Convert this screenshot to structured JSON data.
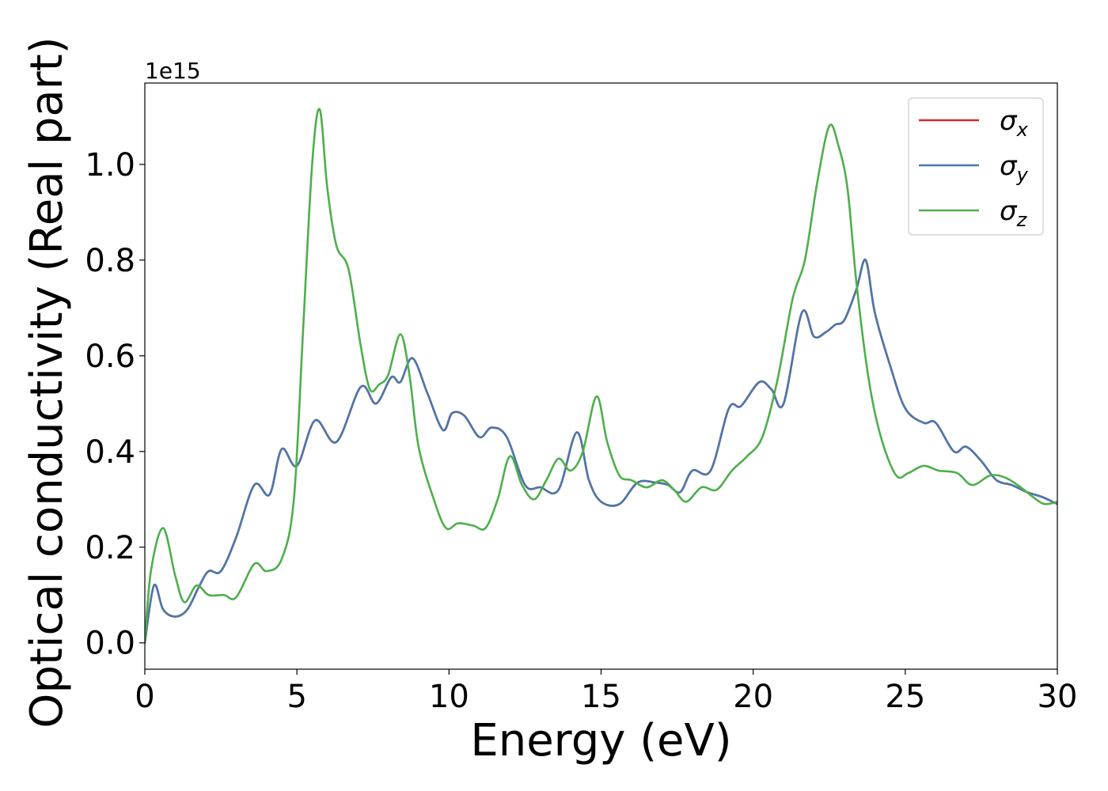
{
  "chart_data": {
    "type": "line",
    "title": "",
    "xlabel": "Energy (eV)",
    "ylabel": "Optical conductivity (Real part)",
    "y_offset_text": "1e15",
    "y_scale": 1000000000000000.0,
    "xlim": [
      0,
      30
    ],
    "ylim": [
      -0.055,
      1.17
    ],
    "xticks": [
      0,
      5,
      10,
      15,
      20,
      25,
      30
    ],
    "xtick_labels": [
      "0",
      "5",
      "10",
      "15",
      "20",
      "25",
      "30"
    ],
    "yticks": [
      0.0,
      0.2,
      0.4,
      0.6,
      0.8,
      1.0
    ],
    "ytick_labels": [
      "0.0",
      "0.2",
      "0.4",
      "0.6",
      "0.8",
      "1.0"
    ],
    "grid": false,
    "legend_position": "top-right",
    "series": [
      {
        "name": "σx",
        "legend_base": "σ",
        "legend_sub": "x",
        "color": "#d62728",
        "x": [
          0,
          0.3,
          0.6,
          1.0,
          1.4,
          1.8,
          2.1,
          2.5,
          3.0,
          3.6,
          4.1,
          4.5,
          5.0,
          5.6,
          6.3,
          7.1,
          7.6,
          8.1,
          8.4,
          8.8,
          9.3,
          9.8,
          10.1,
          10.5,
          11.0,
          11.4,
          11.9,
          12.5,
          13.0,
          13.6,
          14.2,
          14.6,
          15.0,
          15.6,
          16.2,
          16.8,
          17.2,
          17.6,
          18.0,
          18.6,
          19.2,
          19.6,
          20.2,
          20.6,
          21.0,
          21.6,
          22.0,
          22.4,
          22.7,
          23.0,
          23.4,
          23.7,
          24.0,
          24.5,
          25.0,
          25.6,
          26.0,
          26.6,
          27.0,
          27.5,
          28.0,
          28.5,
          29.0,
          29.5,
          30.0
        ],
        "values": [
          0.0,
          0.12,
          0.07,
          0.055,
          0.07,
          0.12,
          0.15,
          0.15,
          0.22,
          0.33,
          0.31,
          0.405,
          0.37,
          0.465,
          0.42,
          0.535,
          0.5,
          0.555,
          0.545,
          0.595,
          0.52,
          0.445,
          0.48,
          0.475,
          0.43,
          0.45,
          0.43,
          0.33,
          0.325,
          0.32,
          0.44,
          0.34,
          0.295,
          0.29,
          0.335,
          0.335,
          0.33,
          0.315,
          0.36,
          0.36,
          0.49,
          0.495,
          0.545,
          0.53,
          0.5,
          0.69,
          0.64,
          0.65,
          0.665,
          0.675,
          0.74,
          0.8,
          0.69,
          0.58,
          0.49,
          0.46,
          0.46,
          0.4,
          0.41,
          0.38,
          0.34,
          0.33,
          0.315,
          0.305,
          0.29
        ]
      },
      {
        "name": "σy",
        "legend_base": "σ",
        "legend_sub": "y",
        "color": "#4a78aa",
        "x": [
          0,
          0.3,
          0.6,
          1.0,
          1.4,
          1.8,
          2.1,
          2.5,
          3.0,
          3.6,
          4.1,
          4.5,
          5.0,
          5.6,
          6.3,
          7.1,
          7.6,
          8.1,
          8.4,
          8.8,
          9.3,
          9.8,
          10.1,
          10.5,
          11.0,
          11.4,
          11.9,
          12.5,
          13.0,
          13.6,
          14.2,
          14.6,
          15.0,
          15.6,
          16.2,
          16.8,
          17.2,
          17.6,
          18.0,
          18.6,
          19.2,
          19.6,
          20.2,
          20.6,
          21.0,
          21.6,
          22.0,
          22.4,
          22.7,
          23.0,
          23.4,
          23.7,
          24.0,
          24.5,
          25.0,
          25.6,
          26.0,
          26.6,
          27.0,
          27.5,
          28.0,
          28.5,
          29.0,
          29.5,
          30.0
        ],
        "values": [
          0.0,
          0.12,
          0.07,
          0.055,
          0.07,
          0.12,
          0.15,
          0.15,
          0.22,
          0.33,
          0.31,
          0.405,
          0.37,
          0.465,
          0.42,
          0.535,
          0.5,
          0.555,
          0.545,
          0.595,
          0.52,
          0.445,
          0.48,
          0.475,
          0.43,
          0.45,
          0.43,
          0.33,
          0.325,
          0.32,
          0.44,
          0.34,
          0.295,
          0.29,
          0.335,
          0.335,
          0.33,
          0.315,
          0.36,
          0.36,
          0.49,
          0.495,
          0.545,
          0.53,
          0.5,
          0.69,
          0.64,
          0.65,
          0.665,
          0.675,
          0.74,
          0.8,
          0.69,
          0.58,
          0.49,
          0.46,
          0.46,
          0.4,
          0.41,
          0.38,
          0.34,
          0.33,
          0.315,
          0.305,
          0.29
        ]
      },
      {
        "name": "σz",
        "legend_base": "σ",
        "legend_sub": "z",
        "color": "#4daf4a",
        "x": [
          0,
          0.2,
          0.6,
          1.0,
          1.3,
          1.7,
          2.1,
          2.6,
          3.0,
          3.6,
          4.0,
          4.5,
          4.9,
          5.2,
          5.5,
          5.75,
          6.0,
          6.3,
          6.7,
          7.1,
          7.4,
          7.7,
          8.0,
          8.4,
          8.7,
          9.0,
          9.5,
          9.9,
          10.3,
          10.8,
          11.2,
          11.6,
          12.0,
          12.4,
          12.8,
          13.2,
          13.6,
          14.0,
          14.4,
          14.85,
          15.2,
          15.6,
          16.0,
          16.5,
          17.0,
          17.4,
          17.8,
          18.3,
          18.8,
          19.3,
          19.8,
          20.3,
          20.8,
          21.3,
          21.7,
          22.1,
          22.5,
          22.8,
          23.1,
          23.4,
          23.8,
          24.2,
          24.7,
          25.1,
          25.6,
          26.1,
          26.7,
          27.2,
          27.8,
          28.3,
          28.8,
          29.3,
          29.6,
          30.0
        ],
        "values": [
          0.0,
          0.15,
          0.24,
          0.14,
          0.085,
          0.12,
          0.1,
          0.1,
          0.095,
          0.165,
          0.15,
          0.175,
          0.3,
          0.65,
          1.0,
          1.115,
          0.95,
          0.83,
          0.78,
          0.62,
          0.53,
          0.54,
          0.56,
          0.645,
          0.56,
          0.41,
          0.3,
          0.24,
          0.25,
          0.245,
          0.24,
          0.3,
          0.39,
          0.33,
          0.3,
          0.34,
          0.385,
          0.36,
          0.4,
          0.515,
          0.42,
          0.35,
          0.34,
          0.325,
          0.34,
          0.32,
          0.295,
          0.325,
          0.32,
          0.36,
          0.39,
          0.43,
          0.55,
          0.72,
          0.8,
          0.96,
          1.08,
          1.04,
          0.95,
          0.75,
          0.55,
          0.43,
          0.35,
          0.355,
          0.37,
          0.36,
          0.355,
          0.33,
          0.35,
          0.345,
          0.325,
          0.3,
          0.29,
          0.295
        ]
      }
    ]
  }
}
